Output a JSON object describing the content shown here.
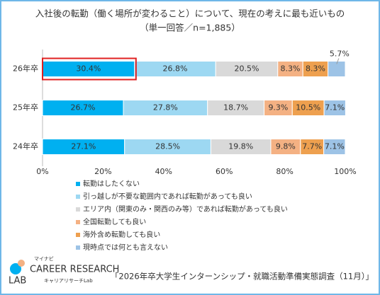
{
  "chart_data": {
    "type": "stacked-bar-horizontal",
    "title": "入社後の転勤（働く場所が変わること）について、現在の考えに最も近いもの",
    "subtitle": "（単一回答／n=1,885）",
    "categories": [
      "26年卒",
      "25年卒",
      "24年卒"
    ],
    "series": [
      {
        "name": "転勤はしたくない",
        "color": "#00b0f0",
        "values": [
          30.4,
          26.7,
          27.1
        ],
        "value_labels": [
          "30.4%",
          "26.7%",
          "27.1%"
        ]
      },
      {
        "name": "引っ越しが不要な範囲内であれば転勤があっても良い",
        "color": "#9dd8f2",
        "values": [
          26.8,
          27.8,
          28.5
        ],
        "value_labels": [
          "26.8%",
          "27.8%",
          "28.5%"
        ]
      },
      {
        "name": "エリア内（関東のみ・関西のみ等）であれば転勤があっても良い",
        "color": "#d9d9d9",
        "values": [
          20.5,
          18.7,
          19.8
        ],
        "value_labels": [
          "20.5%",
          "18.7%",
          "19.8%"
        ]
      },
      {
        "name": "全国転勤しても良い",
        "color": "#f4b183",
        "values": [
          8.3,
          9.3,
          9.8
        ],
        "value_labels": [
          "8.3%",
          "9.3%",
          "9.8%"
        ]
      },
      {
        "name": "海外含め転勤しても良い",
        "color": "#eea04f",
        "values": [
          8.3,
          10.5,
          7.7
        ],
        "value_labels": [
          "8.3%",
          "10.5%",
          "7.7%"
        ]
      },
      {
        "name": "現時点では何とも言えない",
        "color": "#9dc3e6",
        "values": [
          5.7,
          7.1,
          7.1
        ],
        "value_labels": [
          "5.7%",
          "7.1%",
          "7.1%"
        ]
      }
    ],
    "xlim": [
      0,
      100
    ],
    "xticks": [
      {
        "value": 0,
        "label": "0%"
      },
      {
        "value": 20,
        "label": "20%"
      },
      {
        "value": 40,
        "label": "40%"
      },
      {
        "value": 60,
        "label": "60%"
      },
      {
        "value": 80,
        "label": "80%"
      },
      {
        "value": 100,
        "label": "100%"
      }
    ],
    "grid": false,
    "source": "「2026年卒大学生インターンシップ・就職活動準備実態調査（11月）」"
  },
  "logo": {
    "brand": "マイナビ",
    "line1": "CAREER RESEARCH",
    "line2": "LAB",
    "sub": "キャリアリサーチLab"
  }
}
